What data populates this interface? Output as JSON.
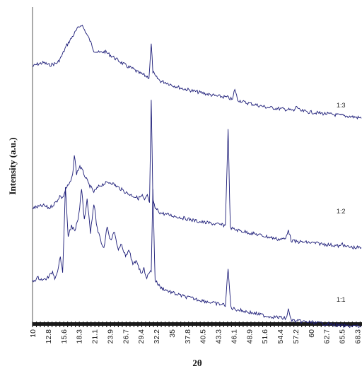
{
  "chart_data": {
    "type": "line",
    "title": "",
    "xlabel": "2θ",
    "ylabel": "Intensity (a.u.)",
    "xlim": [
      10,
      69
    ],
    "x_tick_labels": [
      "10",
      "12.8",
      "15.6",
      "18.3",
      "21.1",
      "23.9",
      "26.7",
      "29.4",
      "32.2",
      "35",
      "37.8",
      "40.5",
      "43.3",
      "46.1",
      "48.9",
      "51.6",
      "54.4",
      "57.2",
      "60",
      "62.7",
      "65.5",
      "68.3"
    ],
    "line_color": "#1c1c78",
    "series": [
      {
        "name": "1:3",
        "x": [
          10,
          11,
          12,
          13,
          13.8,
          14.5,
          15.2,
          16,
          17,
          18,
          18.8,
          19.5,
          20.3,
          21,
          22,
          23,
          24,
          25,
          26,
          27,
          28,
          29,
          30,
          30.9,
          31.3,
          31.6,
          32,
          33,
          34,
          35,
          37,
          40,
          43,
          45,
          45.9,
          46.3,
          46.8,
          48,
          50,
          52,
          54,
          56,
          56.9,
          57.4,
          58,
          60,
          62,
          64,
          66,
          68,
          69
        ],
        "y": [
          12,
          14,
          15,
          13,
          14,
          15,
          20,
          28,
          35,
          42,
          46,
          40,
          33,
          25,
          23,
          24,
          21,
          18,
          15,
          12,
          10,
          7,
          5,
          3,
          30,
          8,
          4,
          0,
          -1,
          -3,
          -6,
          -9,
          -12,
          -13,
          -15,
          -6,
          -15,
          -17,
          -19,
          -21,
          -22,
          -23,
          -24,
          -20,
          -24,
          -25,
          -26,
          -27,
          -28,
          -29,
          -30
        ]
      },
      {
        "name": "1:2",
        "x": [
          10,
          11,
          12,
          13,
          13.8,
          14.4,
          14.9,
          15.4,
          16,
          16.7,
          17.2,
          17.5,
          17.9,
          18.5,
          19.2,
          20,
          21,
          22,
          23,
          24,
          25,
          26,
          27,
          28,
          29,
          29.7,
          30.1,
          30.6,
          31,
          31.3,
          31.6,
          32,
          33,
          35,
          37,
          40,
          43,
          44.6,
          45.1,
          45.5,
          46,
          48,
          50,
          52,
          54,
          55.4,
          55.9,
          56.4,
          57,
          60,
          62,
          64,
          65.3,
          65.6,
          66,
          68,
          69
        ],
        "y": [
          2,
          3,
          4,
          2,
          5,
          8,
          12,
          10,
          18,
          22,
          28,
          45,
          30,
          36,
          30,
          22,
          15,
          20,
          22,
          23,
          20,
          17,
          14,
          12,
          10,
          12,
          8,
          12,
          6,
          90,
          8,
          2,
          -2,
          -4,
          -6,
          -9,
          -11,
          -12,
          65,
          -14,
          -15,
          -17,
          -19,
          -21,
          -23,
          -23,
          -15,
          -24,
          -25,
          -26,
          -27,
          -28,
          -29,
          -26,
          -29,
          -30,
          -30
        ]
      },
      {
        "name": "1:1",
        "x": [
          10,
          11,
          12,
          13,
          13.6,
          14,
          14.5,
          15,
          15.4,
          15.9,
          16.4,
          17,
          17.6,
          18.3,
          18.8,
          19.3,
          19.8,
          20.4,
          21,
          21.6,
          22.2,
          22.8,
          23.4,
          24,
          24.7,
          25.4,
          26,
          26.7,
          27.4,
          28,
          28.7,
          29.4,
          30,
          30.5,
          31,
          31.3,
          31.6,
          32,
          33,
          35,
          37,
          40,
          43,
          44.6,
          45.1,
          45.6,
          46,
          48,
          50,
          52,
          54,
          55.5,
          55.9,
          56.4,
          57,
          60,
          62,
          64,
          66,
          68,
          69
        ],
        "y": [
          5,
          8,
          6,
          9,
          13,
          8,
          14,
          25,
          12,
          80,
          42,
          50,
          45,
          58,
          80,
          55,
          72,
          45,
          68,
          48,
          38,
          32,
          50,
          38,
          45,
          30,
          35,
          25,
          30,
          18,
          22,
          12,
          15,
          8,
          12,
          14,
          80,
          6,
          0,
          -4,
          -7,
          -10,
          -13,
          -14,
          15,
          -16,
          -17,
          -19,
          -21,
          -23,
          -24,
          -25,
          -18,
          -26,
          -27,
          -28,
          -29,
          -30,
          -31,
          -31,
          -32
        ]
      }
    ]
  }
}
